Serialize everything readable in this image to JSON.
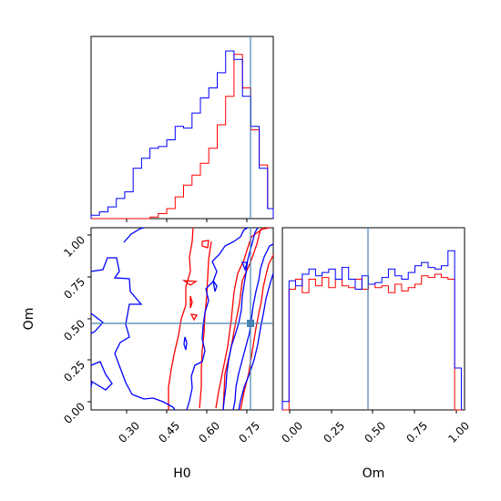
{
  "chart_data": {
    "type": "corner",
    "parameters": [
      "H0",
      "Om"
    ],
    "truth": {
      "H0": 0.78,
      "Om": 0.46
    },
    "truth_color": "#4682b4",
    "series": [
      {
        "color": "#ff0000"
      },
      {
        "color": "#0000ff"
      }
    ],
    "axes": {
      "h0_range": [
        0.2,
        0.85
      ],
      "om_range": [
        -0.04,
        1.06
      ],
      "h0_ticks": [
        "0.30",
        "0.45",
        "0.60",
        "0.75"
      ],
      "h0_tick_values": [
        0.3,
        0.45,
        0.6,
        0.75
      ],
      "om_ticks": [
        "0.00",
        "0.25",
        "0.50",
        "0.75",
        "1.00"
      ],
      "om_tick_values": [
        0.0,
        0.25,
        0.5,
        0.75,
        1.0
      ]
    },
    "hist_h0": {
      "bin_edges": [
        0.2,
        0.23,
        0.26,
        0.29,
        0.32,
        0.35,
        0.38,
        0.41,
        0.44,
        0.47,
        0.5,
        0.53,
        0.56,
        0.59,
        0.62,
        0.65,
        0.68,
        0.71,
        0.74,
        0.77,
        0.8,
        0.83,
        0.85
      ],
      "red": [
        0,
        0,
        0,
        0,
        0,
        0,
        0,
        0.01,
        0.03,
        0.06,
        0.13,
        0.2,
        0.26,
        0.33,
        0.42,
        0.56,
        0.73,
        0.98,
        0.78,
        0.53,
        0.32,
        0.06
      ],
      "blue": [
        0.02,
        0.04,
        0.07,
        0.12,
        0.16,
        0.3,
        0.36,
        0.42,
        0.43,
        0.47,
        0.55,
        0.54,
        0.63,
        0.72,
        0.78,
        0.87,
        1.0,
        0.95,
        0.73,
        0.55,
        0.3,
        0.06
      ]
    },
    "hist_om": {
      "bin_edges": [
        -0.04,
        0.0,
        0.04,
        0.08,
        0.12,
        0.16,
        0.2,
        0.24,
        0.28,
        0.32,
        0.36,
        0.4,
        0.44,
        0.48,
        0.52,
        0.56,
        0.6,
        0.64,
        0.68,
        0.72,
        0.76,
        0.8,
        0.84,
        0.88,
        0.92,
        0.96,
        1.0,
        1.04
      ],
      "red": [
        0,
        0.72,
        0.78,
        0.7,
        0.78,
        0.74,
        0.79,
        0.73,
        0.78,
        0.74,
        0.73,
        0.78,
        0.72,
        0.75,
        0.73,
        0.74,
        0.7,
        0.75,
        0.71,
        0.73,
        0.75,
        0.8,
        0.79,
        0.81,
        0.79,
        0.78,
        0
      ],
      "blue": [
        0.05,
        0.77,
        0.74,
        0.81,
        0.84,
        0.8,
        0.82,
        0.84,
        0.78,
        0.85,
        0.78,
        0.72,
        0.8,
        0.75,
        0.76,
        0.79,
        0.84,
        0.8,
        0.78,
        0.82,
        0.86,
        0.88,
        0.85,
        0.84,
        0.86,
        0.95,
        0.25
      ]
    }
  }
}
